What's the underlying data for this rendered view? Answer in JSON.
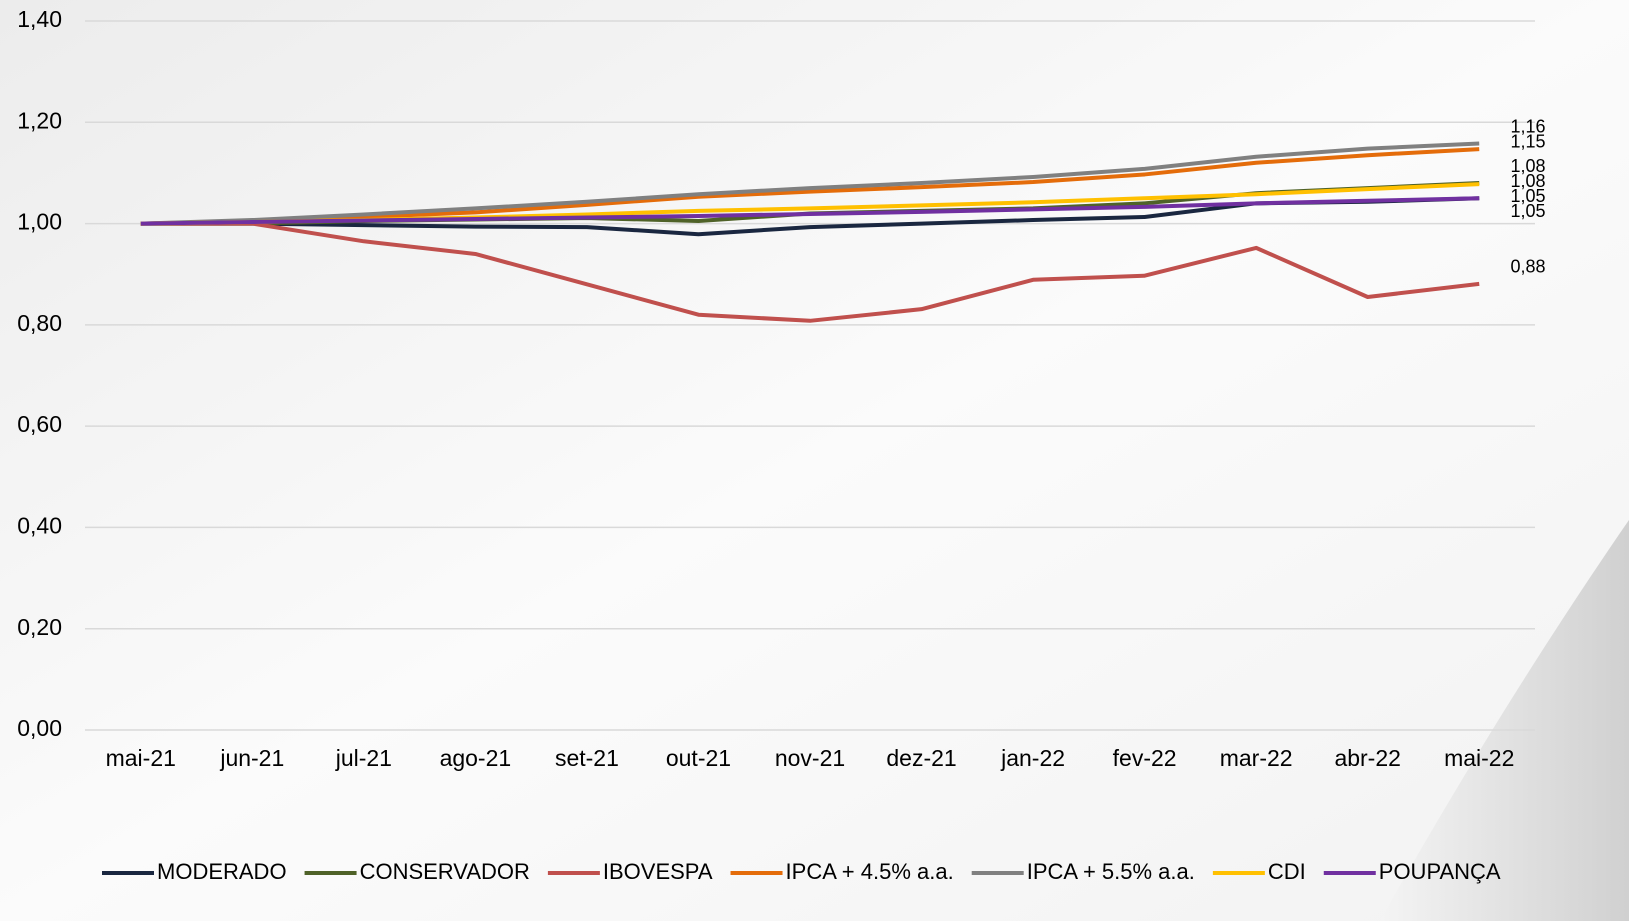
{
  "chart_data": {
    "type": "line",
    "categories": [
      "mai-21",
      "jun-21",
      "jul-21",
      "ago-21",
      "set-21",
      "out-21",
      "nov-21",
      "dez-21",
      "jan-22",
      "fev-22",
      "mar-22",
      "abr-22",
      "mai-22"
    ],
    "series": [
      {
        "name": "MODERADO",
        "color": "#1a2740",
        "values": [
          1.0,
          1.0,
          0.997,
          0.994,
          0.993,
          0.979,
          0.993,
          1.0,
          1.007,
          1.013,
          1.04,
          1.043,
          1.05
        ],
        "value_labels": [
          null,
          null,
          null,
          null,
          null,
          null,
          null,
          null,
          null,
          null,
          null,
          null,
          "1,05"
        ]
      },
      {
        "name": "CONSERVADOR",
        "color": "#4f6228",
        "values": [
          1.0,
          1.0,
          1.005,
          1.008,
          1.011,
          1.005,
          1.02,
          1.025,
          1.03,
          1.04,
          1.06,
          1.07,
          1.08
        ],
        "value_labels": [
          null,
          null,
          null,
          null,
          null,
          null,
          null,
          null,
          null,
          null,
          null,
          null,
          "1,08"
        ]
      },
      {
        "name": "IBOVESPA",
        "color": "#c0504d",
        "values": [
          1.0,
          1.0,
          0.965,
          0.94,
          0.88,
          0.82,
          0.808,
          0.831,
          0.889,
          0.897,
          0.952,
          0.855,
          0.881
        ],
        "value_labels": [
          null,
          null,
          null,
          null,
          null,
          null,
          null,
          null,
          null,
          null,
          null,
          null,
          "0,88"
        ]
      },
      {
        "name": "IPCA + 4.5% a.a.",
        "color": "#e46c0a",
        "values": [
          1.0,
          1.005,
          1.013,
          1.022,
          1.037,
          1.053,
          1.063,
          1.072,
          1.082,
          1.097,
          1.12,
          1.135,
          1.147
        ],
        "value_labels": [
          null,
          null,
          null,
          null,
          null,
          null,
          null,
          null,
          null,
          null,
          null,
          null,
          "1,15"
        ]
      },
      {
        "name": "IPCA + 5.5% a.a.",
        "color": "#808080",
        "values": [
          1.0,
          1.007,
          1.018,
          1.03,
          1.043,
          1.058,
          1.07,
          1.08,
          1.092,
          1.108,
          1.132,
          1.148,
          1.158
        ],
        "value_labels": [
          null,
          null,
          null,
          null,
          null,
          null,
          null,
          null,
          null,
          null,
          null,
          null,
          "1,16"
        ]
      },
      {
        "name": "CDI",
        "color": "#ffc000",
        "values": [
          1.0,
          1.003,
          1.007,
          1.012,
          1.018,
          1.025,
          1.03,
          1.036,
          1.042,
          1.05,
          1.058,
          1.068,
          1.078
        ],
        "value_labels": [
          null,
          null,
          null,
          null,
          null,
          null,
          null,
          null,
          null,
          null,
          null,
          null,
          "1,08"
        ]
      },
      {
        "name": "POUPANÇA",
        "color": "#7030a0",
        "values": [
          1.0,
          1.003,
          1.006,
          1.009,
          1.012,
          1.015,
          1.019,
          1.023,
          1.028,
          1.033,
          1.04,
          1.045,
          1.05
        ],
        "value_labels": [
          null,
          null,
          null,
          null,
          null,
          null,
          null,
          null,
          null,
          null,
          null,
          null,
          "1,05"
        ]
      }
    ],
    "ylim": [
      0,
      1.4
    ],
    "yticks": [
      {
        "value": 0,
        "label": "0,00"
      },
      {
        "value": 0.2,
        "label": "0,20"
      },
      {
        "value": 0.4,
        "label": "0,40"
      },
      {
        "value": 0.6,
        "label": "0,60"
      },
      {
        "value": 0.8,
        "label": "0,80"
      },
      {
        "value": 1.0,
        "label": "1,00"
      },
      {
        "value": 1.2,
        "label": "1,20"
      },
      {
        "value": 1.4,
        "label": "1,40"
      }
    ],
    "grid": true,
    "legend": "bottom"
  }
}
